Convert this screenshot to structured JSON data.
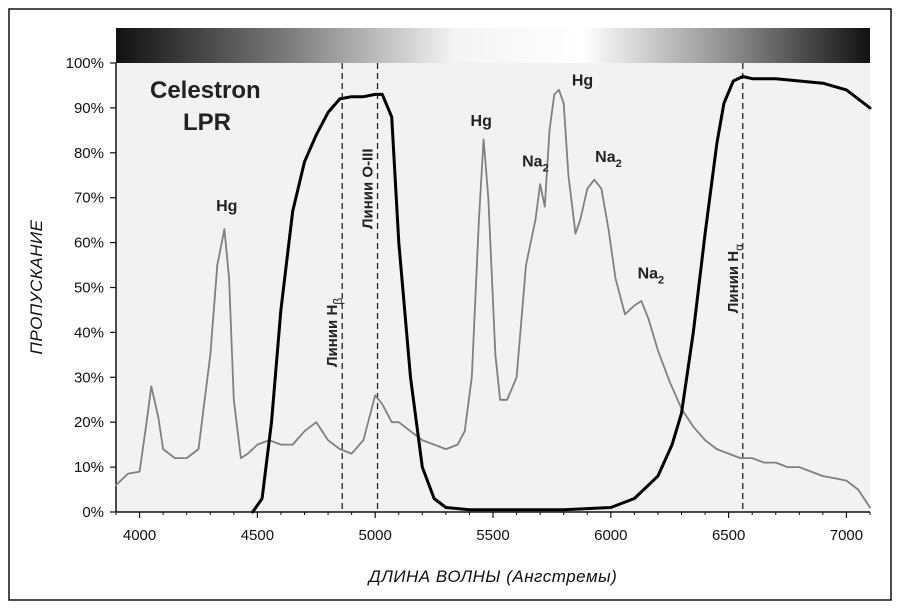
{
  "chart_data": {
    "type": "line",
    "title": "Celestron LPR",
    "title_lines": [
      "Celestron",
      "LPR"
    ],
    "xlabel": "ДЛИНА ВОЛНЫ (Ангстремы)",
    "ylabel": "ПРОПУСКАНИЕ",
    "xlim": [
      3900,
      7100
    ],
    "ylim": [
      0,
      100
    ],
    "x_ticks": [
      4000,
      4500,
      5000,
      5500,
      6000,
      6500,
      7000
    ],
    "y_ticks": [
      0,
      10,
      20,
      30,
      40,
      50,
      60,
      70,
      80,
      90,
      100
    ],
    "y_tick_labels": [
      "0%",
      "10%",
      "20%",
      "30%",
      "40%",
      "50%",
      "60%",
      "70%",
      "80%",
      "90%",
      "100%"
    ],
    "grid": false,
    "color_bar": "dark-to-light-to-dark gradient across top",
    "series": [
      {
        "role": "filter_transmission",
        "color": "#000000",
        "x": [
          4480,
          4520,
          4560,
          4600,
          4650,
          4700,
          4750,
          4800,
          4850,
          4900,
          4950,
          5000,
          5030,
          5070,
          5100,
          5150,
          5200,
          5250,
          5300,
          5400,
          5600,
          5800,
          6000,
          6100,
          6200,
          6260,
          6300,
          6350,
          6400,
          6450,
          6480,
          6520,
          6560,
          6600,
          6700,
          6800,
          6900,
          7000,
          7050,
          7100
        ],
        "y": [
          0,
          3,
          20,
          45,
          67,
          78,
          84,
          89,
          92,
          92.5,
          92.5,
          93,
          93,
          88,
          60,
          30,
          10,
          3,
          1,
          0.5,
          0.5,
          0.5,
          1,
          3,
          8,
          15,
          22,
          40,
          62,
          82,
          91,
          96,
          97,
          96.5,
          96.5,
          96,
          95.5,
          94,
          92,
          90
        ]
      },
      {
        "role": "light_pollution_spectrum",
        "color": "#808080",
        "x": [
          3900,
          3950,
          4000,
          4030,
          4050,
          4080,
          4100,
          4150,
          4200,
          4250,
          4300,
          4330,
          4360,
          4380,
          4400,
          4430,
          4460,
          4500,
          4550,
          4600,
          4650,
          4700,
          4750,
          4800,
          4850,
          4900,
          4950,
          5000,
          5030,
          5070,
          5100,
          5150,
          5200,
          5250,
          5300,
          5350,
          5380,
          5410,
          5440,
          5460,
          5480,
          5510,
          5530,
          5560,
          5600,
          5640,
          5680,
          5700,
          5720,
          5740,
          5760,
          5780,
          5800,
          5820,
          5850,
          5870,
          5900,
          5930,
          5960,
          5990,
          6020,
          6060,
          6100,
          6130,
          6160,
          6200,
          6250,
          6300,
          6350,
          6400,
          6450,
          6500,
          6550,
          6600,
          6650,
          6700,
          6750,
          6800,
          6850,
          6900,
          6950,
          7000,
          7050,
          7100
        ],
        "y": [
          6,
          8.5,
          9,
          20,
          28,
          21,
          14,
          12,
          12,
          14,
          35,
          55,
          63,
          52,
          25,
          12,
          13,
          15,
          16,
          15,
          15,
          18,
          20,
          16,
          14,
          13,
          16,
          26,
          24,
          20,
          20,
          18,
          16,
          15,
          14,
          15,
          18,
          30,
          65,
          83,
          70,
          35,
          25,
          25,
          30,
          55,
          65,
          73,
          68,
          85,
          93,
          94,
          91,
          75,
          62,
          65,
          72,
          74,
          72,
          63,
          52,
          44,
          46,
          47,
          43,
          36,
          29,
          23,
          19,
          16,
          14,
          13,
          12,
          12,
          11,
          11,
          10,
          10,
          9,
          8,
          7.5,
          7,
          5,
          1
        ]
      }
    ],
    "annotations": [
      {
        "text": "Hg",
        "x": 4370,
        "y": 67
      },
      {
        "text": "Hg",
        "x": 5450,
        "y": 86
      },
      {
        "text": "Na",
        "sub": "2",
        "x": 5680,
        "y": 77
      },
      {
        "text": "Hg",
        "x": 5880,
        "y": 95
      },
      {
        "text": "Na",
        "sub": "2",
        "x": 5990,
        "y": 78
      },
      {
        "text": "Na",
        "sub": "2",
        "x": 6170,
        "y": 52
      }
    ],
    "vertical_lines": [
      {
        "x": 4860,
        "label": "Линии H",
        "sub": "β",
        "label_y": 40
      },
      {
        "x": 5010,
        "label": "Линии O-III",
        "sub": "",
        "label_y": 72
      },
      {
        "x": 6560,
        "label": "Линии H",
        "sub": "α",
        "label_y": 52
      }
    ]
  }
}
